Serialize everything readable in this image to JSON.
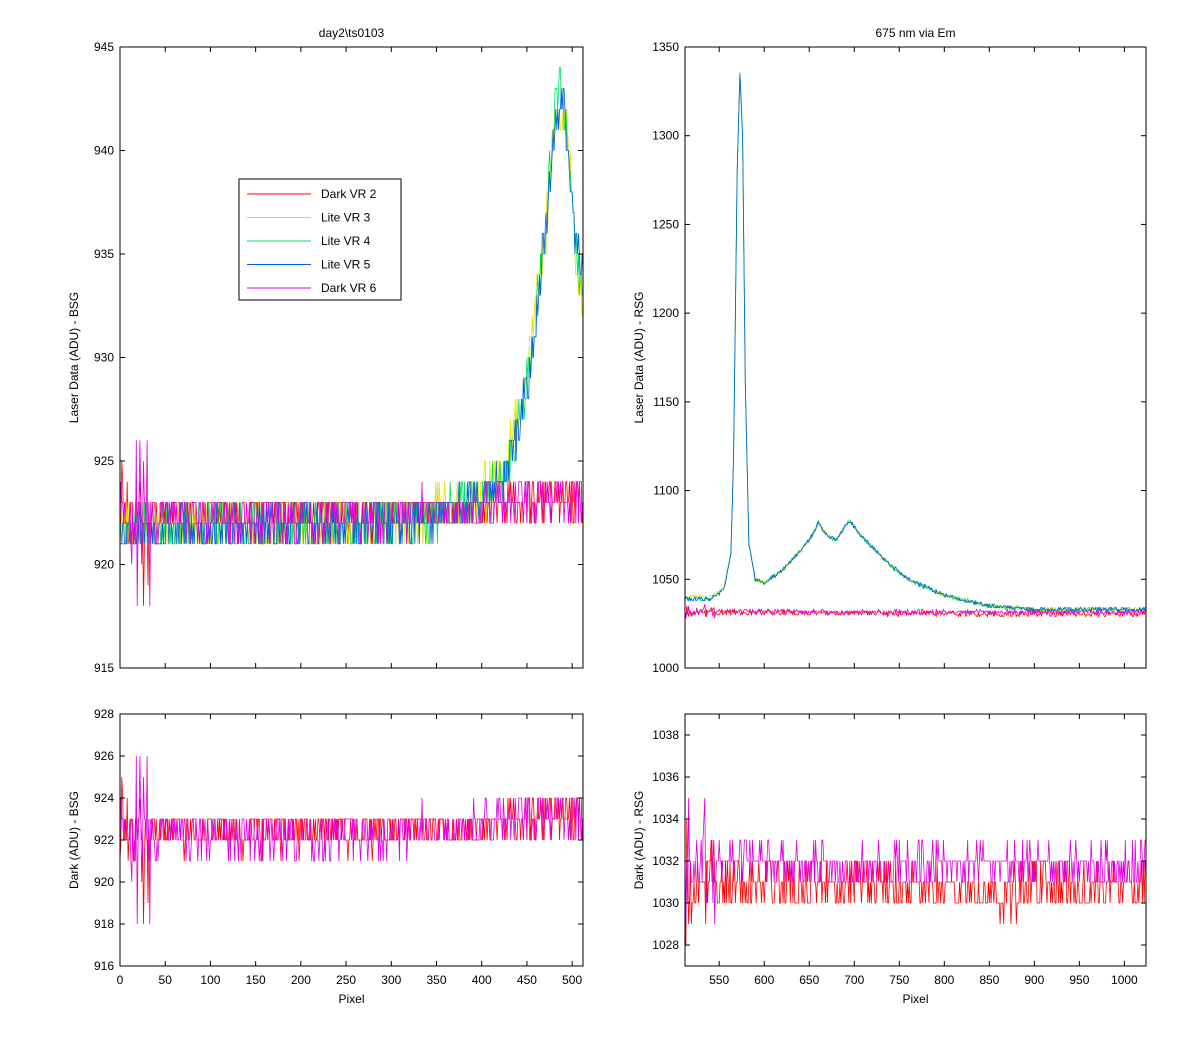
{
  "chart_data": [
    {
      "id": "tl",
      "type": "line",
      "title": "day2\\ts0103",
      "xlabel": "",
      "ylabel": "Laser Data (ADU) - BSG",
      "xlim": [
        0,
        512
      ],
      "ylim": [
        915,
        945
      ],
      "xticks": [
        0,
        50,
        100,
        150,
        200,
        250,
        300,
        350,
        400,
        450,
        500
      ],
      "yticks": [
        915,
        920,
        925,
        930,
        935,
        940,
        945
      ],
      "show_xtick_labels": false,
      "grid": false,
      "legend_position": "upper-left",
      "series": [
        {
          "name": "Dark VR 2",
          "color": "#ff0000",
          "key": [
            [
              0,
              922.5
            ],
            [
              40,
              922.5
            ],
            [
              100,
              922.3
            ],
            [
              200,
              922.3
            ],
            [
              300,
              922.4
            ],
            [
              400,
              922.6
            ],
            [
              450,
              923
            ],
            [
              512,
              923.2
            ]
          ],
          "noise": 0.9
        },
        {
          "name": "Lite VR 3",
          "color": "#e0e000",
          "key": [
            [
              0,
              922
            ],
            [
              150,
              921.8
            ],
            [
              300,
              922.1
            ],
            [
              400,
              923.3
            ],
            [
              425,
              924.5
            ],
            [
              440,
              927
            ],
            [
              455,
              931
            ],
            [
              470,
              936
            ],
            [
              482,
              941
            ],
            [
              490,
              942
            ],
            [
              498,
              939
            ],
            [
              505,
              935
            ],
            [
              512,
              933
            ]
          ],
          "noise": 1.3
        },
        {
          "name": "Lite VR 4",
          "color": "#00e060",
          "key": [
            [
              0,
              921.8
            ],
            [
              150,
              921.8
            ],
            [
              300,
              922
            ],
            [
              400,
              923
            ],
            [
              425,
              924
            ],
            [
              440,
              926.5
            ],
            [
              455,
              930
            ],
            [
              470,
              936
            ],
            [
              482,
              942.5
            ],
            [
              488,
              943
            ],
            [
              496,
              940
            ],
            [
              505,
              935
            ],
            [
              512,
              934
            ]
          ],
          "noise": 1.1
        },
        {
          "name": "Lite VR 5",
          "color": "#0060e0",
          "key": [
            [
              0,
              921.8
            ],
            [
              150,
              921.7
            ],
            [
              300,
              922
            ],
            [
              400,
              923
            ],
            [
              425,
              924
            ],
            [
              440,
              926.5
            ],
            [
              455,
              930
            ],
            [
              470,
              936
            ],
            [
              484,
              942
            ],
            [
              490,
              942.5
            ],
            [
              498,
              939
            ],
            [
              505,
              935
            ],
            [
              512,
              934
            ]
          ],
          "noise": 1.0
        },
        {
          "name": "Dark VR 6",
          "color": "#e000e0",
          "key": [
            [
              0,
              922.3
            ],
            [
              150,
              922.2
            ],
            [
              300,
              922.3
            ],
            [
              400,
              922.7
            ],
            [
              450,
              923
            ],
            [
              512,
              923.3
            ]
          ],
          "noise": 1.1
        }
      ]
    },
    {
      "id": "tr",
      "type": "line",
      "title": "675 nm via Em",
      "xlabel": "",
      "ylabel": "Laser Data (ADU) - RSG",
      "xlim": [
        512,
        1024
      ],
      "ylim": [
        1000,
        1350
      ],
      "xticks": [
        550,
        600,
        650,
        700,
        750,
        800,
        850,
        900,
        950,
        1000
      ],
      "yticks": [
        1000,
        1050,
        1100,
        1150,
        1200,
        1250,
        1300,
        1350
      ],
      "show_xtick_labels": false,
      "grid": false,
      "series": [
        {
          "name": "Dark VR 2",
          "color": "#ff0000",
          "key": [
            [
              512,
              1031.5
            ],
            [
              700,
              1031
            ],
            [
              850,
              1030.5
            ],
            [
              1024,
              1030.5
            ]
          ],
          "noise": 1.5
        },
        {
          "name": "Lite VR 3",
          "color": "#e0e000",
          "key": [
            [
              512,
              1040
            ],
            [
              540,
              1040
            ],
            [
              555,
              1045
            ],
            [
              563,
              1065
            ],
            [
              566,
              1120
            ],
            [
              570,
              1280
            ],
            [
              573,
              1336
            ],
            [
              576,
              1300
            ],
            [
              579,
              1160
            ],
            [
              583,
              1070
            ],
            [
              590,
              1050
            ],
            [
              600,
              1048
            ],
            [
              620,
              1055
            ],
            [
              640,
              1066
            ],
            [
              655,
              1076
            ],
            [
              660,
              1082
            ],
            [
              665,
              1078
            ],
            [
              672,
              1074
            ],
            [
              680,
              1072
            ],
            [
              690,
              1080
            ],
            [
              695,
              1083
            ],
            [
              705,
              1076
            ],
            [
              720,
              1068
            ],
            [
              740,
              1058
            ],
            [
              760,
              1050
            ],
            [
              800,
              1041
            ],
            [
              850,
              1035
            ],
            [
              900,
              1033
            ],
            [
              1024,
              1033
            ]
          ],
          "noise": 1.0
        },
        {
          "name": "Lite VR 4",
          "color": "#00e060",
          "key": [
            [
              512,
              1039
            ],
            [
              540,
              1039
            ],
            [
              555,
              1044
            ],
            [
              563,
              1064
            ],
            [
              566,
              1120
            ],
            [
              570,
              1280
            ],
            [
              573,
              1336
            ],
            [
              576,
              1300
            ],
            [
              579,
              1160
            ],
            [
              583,
              1070
            ],
            [
              590,
              1050
            ],
            [
              600,
              1048
            ],
            [
              620,
              1055
            ],
            [
              640,
              1066
            ],
            [
              655,
              1076
            ],
            [
              660,
              1082
            ],
            [
              665,
              1078
            ],
            [
              672,
              1074
            ],
            [
              680,
              1072
            ],
            [
              690,
              1080
            ],
            [
              695,
              1083
            ],
            [
              705,
              1076
            ],
            [
              720,
              1068
            ],
            [
              740,
              1058
            ],
            [
              760,
              1050
            ],
            [
              800,
              1041
            ],
            [
              850,
              1035
            ],
            [
              900,
              1033
            ],
            [
              1024,
              1033
            ]
          ],
          "noise": 1.0
        },
        {
          "name": "Lite VR 5",
          "color": "#0060e0",
          "key": [
            [
              512,
              1039
            ],
            [
              540,
              1039
            ],
            [
              555,
              1044
            ],
            [
              563,
              1064
            ],
            [
              566,
              1120
            ],
            [
              570,
              1280
            ],
            [
              573,
              1336
            ],
            [
              576,
              1300
            ],
            [
              579,
              1160
            ],
            [
              583,
              1070
            ],
            [
              590,
              1050
            ],
            [
              600,
              1048
            ],
            [
              620,
              1055
            ],
            [
              640,
              1066
            ],
            [
              655,
              1076
            ],
            [
              660,
              1082
            ],
            [
              665,
              1078
            ],
            [
              672,
              1074
            ],
            [
              680,
              1072
            ],
            [
              690,
              1080
            ],
            [
              695,
              1083
            ],
            [
              705,
              1076
            ],
            [
              720,
              1068
            ],
            [
              740,
              1058
            ],
            [
              760,
              1050
            ],
            [
              800,
              1041
            ],
            [
              850,
              1035
            ],
            [
              900,
              1033
            ],
            [
              1024,
              1033
            ]
          ],
          "noise": 1.0
        },
        {
          "name": "Dark VR 6",
          "color": "#e000e0",
          "key": [
            [
              512,
              1032
            ],
            [
              700,
              1031.5
            ],
            [
              850,
              1031.5
            ],
            [
              1024,
              1031.5
            ]
          ],
          "noise": 1.2
        }
      ]
    },
    {
      "id": "bl",
      "type": "line",
      "title": "",
      "xlabel": "Pixel",
      "ylabel": "Dark (ADU) - BSG",
      "xlim": [
        0,
        512
      ],
      "ylim": [
        916,
        928
      ],
      "xticks": [
        0,
        50,
        100,
        150,
        200,
        250,
        300,
        350,
        400,
        450,
        500
      ],
      "yticks": [
        916,
        918,
        920,
        922,
        924,
        926,
        928
      ],
      "show_xtick_labels": true,
      "grid": false,
      "series": [
        {
          "name": "Dark VR 2",
          "color": "#ff0000",
          "key": [
            [
              0,
              922.5
            ],
            [
              40,
              922.5
            ],
            [
              100,
              922.3
            ],
            [
              200,
              922.3
            ],
            [
              300,
              922.4
            ],
            [
              400,
              922.6
            ],
            [
              450,
              923
            ],
            [
              512,
              923.2
            ]
          ],
          "noise": 0.9
        },
        {
          "name": "Dark VR 6",
          "color": "#e000e0",
          "key": [
            [
              0,
              922.3
            ],
            [
              150,
              922.2
            ],
            [
              300,
              922.3
            ],
            [
              400,
              922.7
            ],
            [
              450,
              923
            ],
            [
              512,
              923.3
            ]
          ],
          "noise": 1.1
        }
      ]
    },
    {
      "id": "br",
      "type": "line",
      "title": "",
      "xlabel": "Pixel",
      "ylabel": "Dark (ADU) - RSG",
      "xlim": [
        512,
        1024
      ],
      "ylim": [
        1027,
        1039
      ],
      "xticks": [
        550,
        600,
        650,
        700,
        750,
        800,
        850,
        900,
        950,
        1000
      ],
      "yticks": [
        1028,
        1030,
        1032,
        1034,
        1036,
        1038
      ],
      "show_xtick_labels": true,
      "grid": false,
      "series": [
        {
          "name": "Dark VR 2",
          "color": "#ff0000",
          "key": [
            [
              512,
              1031.5
            ],
            [
              520,
              1031
            ],
            [
              700,
              1030.8
            ],
            [
              850,
              1030.5
            ],
            [
              1024,
              1030.8
            ]
          ],
          "noise": 1.1
        },
        {
          "name": "Dark VR 6",
          "color": "#e000e0",
          "key": [
            [
              512,
              1032
            ],
            [
              700,
              1031.8
            ],
            [
              850,
              1031.8
            ],
            [
              1024,
              1031.8
            ]
          ],
          "noise": 0.9
        }
      ]
    }
  ]
}
